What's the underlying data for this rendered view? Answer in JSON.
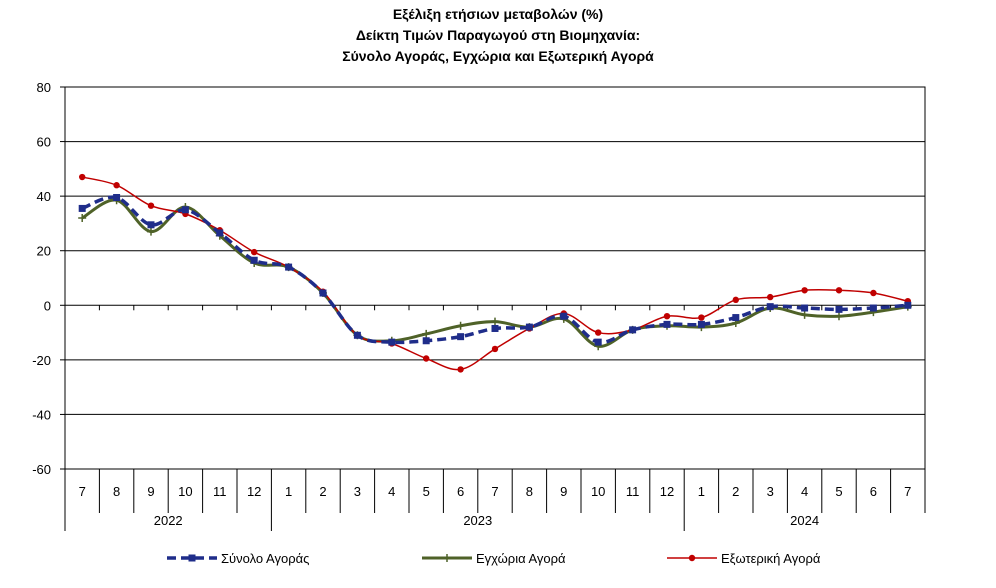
{
  "chart_data": {
    "type": "line",
    "title_lines": [
      "Εξέλιξη ετήσιων μεταβολών (%)",
      "Δείκτη Τιμών Παραγωγού στη Βιομηχανία:",
      "Σύνολο Αγοράς, Εγχώρια και Εξωτερική Αγορά"
    ],
    "xlabel": "",
    "ylabel": "",
    "ylim": [
      -60,
      80
    ],
    "yticks": [
      "80",
      "60",
      "40",
      "20",
      "0",
      "-20",
      "-40",
      "-60"
    ],
    "categories": [
      "7",
      "8",
      "9",
      "10",
      "11",
      "12",
      "1",
      "2",
      "3",
      "4",
      "5",
      "6",
      "7",
      "8",
      "9",
      "10",
      "11",
      "12",
      "1",
      "2",
      "3",
      "4",
      "5",
      "6",
      "7"
    ],
    "year_groups": [
      {
        "label": "2022",
        "count": 6
      },
      {
        "label": "2023",
        "count": 12
      },
      {
        "label": "2024",
        "count": 7
      }
    ],
    "grid": true,
    "legend_position": "bottom",
    "series": [
      {
        "name": "Σύνολο Αγοράς",
        "color": "#1f2d8a",
        "style": "dashed",
        "marker": "square",
        "values": [
          35.5,
          39.5,
          29.5,
          35.0,
          26.5,
          16.5,
          14.0,
          4.5,
          -11.0,
          -13.5,
          -13.0,
          -11.5,
          -8.5,
          -8.0,
          -4.0,
          -13.5,
          -9.0,
          -7.0,
          -7.0,
          -4.5,
          -0.5,
          -1.0,
          -1.5,
          -1.0,
          0.0
        ]
      },
      {
        "name": "Εγχώρια Αγορά",
        "color": "#4f6228",
        "style": "solid",
        "marker": "plus",
        "values": [
          32.0,
          38.5,
          27.0,
          36.0,
          25.5,
          15.5,
          14.0,
          4.5,
          -11.0,
          -13.0,
          -10.5,
          -7.5,
          -6.0,
          -8.0,
          -5.0,
          -15.0,
          -9.0,
          -7.5,
          -8.0,
          -6.5,
          -1.0,
          -3.5,
          -4.0,
          -2.5,
          -0.5
        ]
      },
      {
        "name": "Εξωτερική Αγορά",
        "color": "#c00000",
        "style": "solid",
        "marker": "circle",
        "values": [
          47.0,
          44.0,
          36.5,
          33.5,
          27.5,
          19.5,
          14.0,
          5.0,
          -11.0,
          -14.0,
          -19.5,
          -23.5,
          -16.0,
          -8.5,
          -3.0,
          -10.0,
          -9.0,
          -4.0,
          -4.5,
          2.0,
          3.0,
          5.5,
          5.5,
          4.5,
          1.5
        ]
      }
    ]
  }
}
